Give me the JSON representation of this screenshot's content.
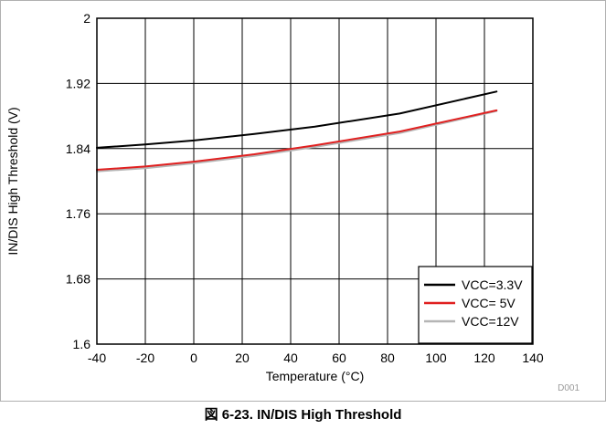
{
  "caption": "図 6-23. IN/DIS High Threshold",
  "chart_data": {
    "type": "line",
    "xlabel": "Temperature (°C)",
    "ylabel": "IN/DIS High Threshold (V)",
    "xlim": [
      -40,
      140
    ],
    "ylim": [
      1.6,
      2.0
    ],
    "x_ticks": [
      "-40",
      "-20",
      "0",
      "20",
      "40",
      "60",
      "80",
      "100",
      "120",
      "140"
    ],
    "y_ticks": [
      "1.6",
      "1.68",
      "1.76",
      "1.84",
      "1.92",
      "2"
    ],
    "grid": true,
    "legend_position": "bottom-right",
    "code_label": "D001",
    "series": [
      {
        "name": "VCC=3.3V",
        "color": "#000000",
        "x": [
          -40,
          -20,
          0,
          25,
          50,
          85,
          125
        ],
        "y": [
          1.841,
          1.845,
          1.85,
          1.858,
          1.867,
          1.883,
          1.91
        ]
      },
      {
        "name": "VCC= 5V",
        "color": "#e02020",
        "x": [
          -40,
          -20,
          0,
          25,
          50,
          85,
          125
        ],
        "y": [
          1.814,
          1.818,
          1.824,
          1.833,
          1.844,
          1.861,
          1.887
        ]
      },
      {
        "name": "VCC=12V",
        "color": "#b5b5b5",
        "x": [
          -40,
          -20,
          0,
          25,
          50,
          85,
          125
        ],
        "y": [
          1.812,
          1.816,
          1.822,
          1.831,
          1.842,
          1.859,
          1.886
        ]
      }
    ]
  }
}
